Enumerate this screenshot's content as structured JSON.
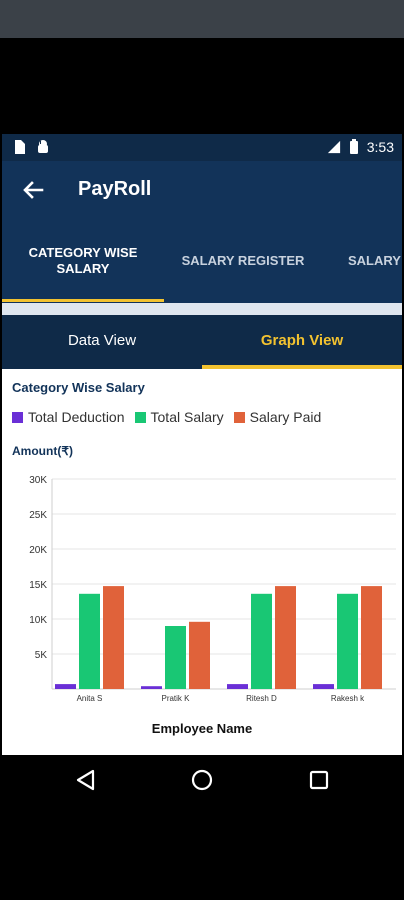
{
  "status_bar": {
    "time": "3:53",
    "icons": [
      "sim-card-icon",
      "android-icon",
      "signal-icon",
      "battery-icon"
    ]
  },
  "app_bar": {
    "title": "PayRoll",
    "back_icon": "arrow-back-icon"
  },
  "main_tabs": [
    {
      "label": "CATEGORY WISE SALARY",
      "active": true
    },
    {
      "label": "SALARY REGISTER",
      "active": false
    },
    {
      "label": "SALARY OUTSTA",
      "active": false
    }
  ],
  "sub_tabs": [
    {
      "label": "Data View",
      "active": false
    },
    {
      "label": "Graph View",
      "active": true
    }
  ],
  "colors": {
    "primary": "#123359",
    "accent": "#f2c230",
    "deduction": "#6a2fd6",
    "total_salary": "#19c774",
    "salary_paid": "#e0623a"
  },
  "chart_data": {
    "type": "bar",
    "title": "Category Wise Salary",
    "ylabel": "Amount(₹)",
    "xlabel": "Employee Name",
    "categories": [
      "Anita S",
      "Pratik K",
      "Ritesh D",
      "Rakesh k"
    ],
    "series": [
      {
        "name": "Total Deduction",
        "color": "#6a2fd6",
        "values": [
          700,
          400,
          700,
          700
        ]
      },
      {
        "name": "Total Salary",
        "color": "#19c774",
        "values": [
          13600,
          9000,
          13600,
          13600
        ]
      },
      {
        "name": "Salary Paid",
        "color": "#e0623a",
        "values": [
          14700,
          9600,
          14700,
          14700
        ]
      }
    ],
    "ylim": [
      0,
      30000
    ],
    "yticks": [
      5000,
      10000,
      15000,
      20000,
      25000,
      30000
    ],
    "ytick_labels": [
      "5K",
      "10K",
      "15K",
      "20K",
      "25K",
      "30K"
    ],
    "grid": true,
    "legend_position": "top-left"
  },
  "nav": {
    "buttons": [
      "back-nav-icon",
      "home-nav-icon",
      "recents-nav-icon"
    ]
  }
}
